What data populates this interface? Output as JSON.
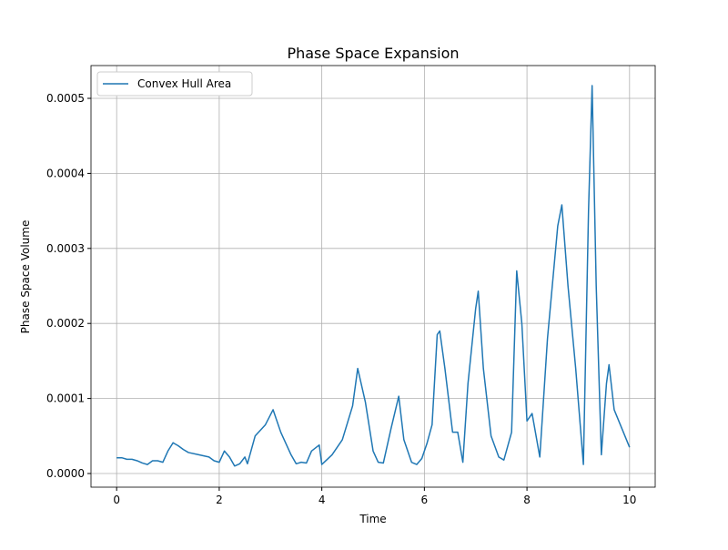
{
  "chart_data": {
    "type": "line",
    "title": "Phase Space Expansion",
    "xlabel": "Time",
    "ylabel": "Phase Space Volume",
    "x": [
      0,
      0.1,
      0.2,
      0.3,
      0.4,
      0.5,
      0.6,
      0.7,
      0.8,
      0.9,
      1.0,
      1.1,
      1.2,
      1.3,
      1.4,
      1.6,
      1.8,
      1.9,
      2.0,
      2.1,
      2.2,
      2.3,
      2.4,
      2.5,
      2.55,
      2.7,
      2.9,
      3.05,
      3.2,
      3.4,
      3.5,
      3.6,
      3.7,
      3.8,
      3.95,
      4.0,
      4.2,
      4.4,
      4.6,
      4.7,
      4.85,
      5.0,
      5.1,
      5.2,
      5.35,
      5.5,
      5.6,
      5.75,
      5.85,
      5.95,
      6.05,
      6.15,
      6.25,
      6.3,
      6.4,
      6.55,
      6.65,
      6.75,
      6.85,
      7.0,
      7.05,
      7.15,
      7.3,
      7.45,
      7.55,
      7.7,
      7.8,
      7.9,
      8.0,
      8.1,
      8.25,
      8.4,
      8.6,
      8.68,
      8.8,
      8.95,
      9.1,
      9.2,
      9.27,
      9.35,
      9.45,
      9.55,
      9.6,
      9.7,
      9.85,
      10.0
    ],
    "series": [
      {
        "name": "Convex Hull Area",
        "color": "#1f77b4",
        "values": [
          2.1e-05,
          2.1e-05,
          1.9e-05,
          1.9e-05,
          1.7e-05,
          1.4e-05,
          1.2e-05,
          1.7e-05,
          1.7e-05,
          1.5e-05,
          3e-05,
          4.1e-05,
          3.7e-05,
          3.2e-05,
          2.8e-05,
          2.5e-05,
          2.2e-05,
          1.7e-05,
          1.5e-05,
          3e-05,
          2.2e-05,
          1e-05,
          1.3e-05,
          2.2e-05,
          1.3e-05,
          5e-05,
          6.5e-05,
          8.5e-05,
          5.5e-05,
          2.5e-05,
          1.3e-05,
          1.5e-05,
          1.4e-05,
          3e-05,
          3.8e-05,
          1.2e-05,
          2.5e-05,
          4.5e-05,
          9e-05,
          0.00014,
          9.5e-05,
          3e-05,
          1.5e-05,
          1.4e-05,
          6e-05,
          0.000103,
          4.5e-05,
          1.5e-05,
          1.2e-05,
          2e-05,
          4e-05,
          6.5e-05,
          0.000185,
          0.00019,
          0.00014,
          5.5e-05,
          5.5e-05,
          1.5e-05,
          0.00012,
          0.00022,
          0.000243,
          0.00014,
          5e-05,
          2.2e-05,
          1.8e-05,
          5.5e-05,
          0.00027,
          0.0002,
          7e-05,
          8e-05,
          2.2e-05,
          0.00018,
          0.00033,
          0.000358,
          0.00025,
          0.00014,
          1.2e-05,
          0.00035,
          0.000517,
          0.00025,
          2.5e-05,
          0.00012,
          0.000145,
          8.5e-05,
          6e-05,
          3.5e-05
        ]
      }
    ],
    "xlim": [
      -0.5,
      10.5
    ],
    "xticks": [
      0,
      2,
      4,
      6,
      8,
      10
    ],
    "ylim": [
      -1.82e-05,
      0.0005437
    ],
    "yticks": [
      {
        "value": 0,
        "label": "0.0000"
      },
      0.0001,
      0.0002,
      0.0003,
      0.0004,
      0.0005
    ],
    "grid": true,
    "legend": "upper left"
  }
}
